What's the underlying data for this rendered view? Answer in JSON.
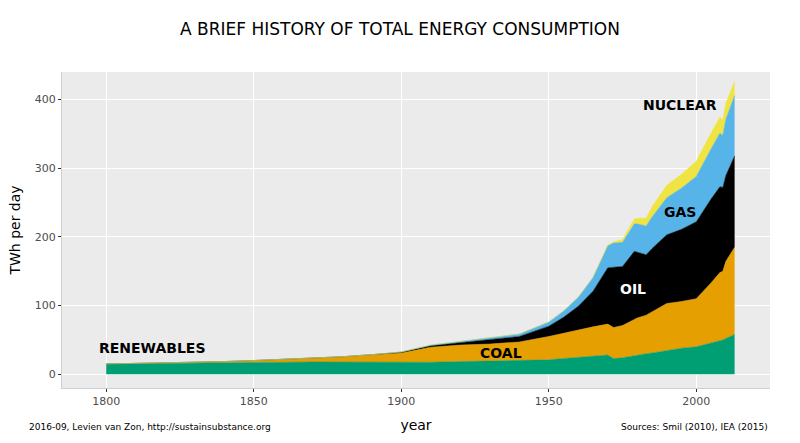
{
  "chart_data": {
    "type": "area",
    "stacked": true,
    "title": "A BRIEF HISTORY OF TOTAL ENERGY CONSUMPTION",
    "x_label": "year",
    "y_label": "TWh per day",
    "caption": "2016-09, Levien van Zon, http://sustainsubstance.org",
    "source": "Sources: Smil (2010), IEA (2015)",
    "grid": true,
    "xlim": [
      1785,
      2025
    ],
    "xticks": [
      1800,
      1850,
      1900,
      1950,
      2000
    ],
    "ylim": [
      -20,
      440
    ],
    "yticks": [
      0,
      100,
      200,
      300,
      400
    ],
    "x": [
      1800,
      1820,
      1840,
      1850,
      1860,
      1870,
      1880,
      1890,
      1900,
      1910,
      1920,
      1930,
      1940,
      1950,
      1955,
      1960,
      1965,
      1970,
      1972,
      1975,
      1979,
      1980,
      1983,
      1985,
      1990,
      1995,
      2000,
      2005,
      2008,
      2009,
      2010,
      2013
    ],
    "series": [
      {
        "name": "RENEWABLES",
        "color": "#009E73",
        "values": [
          15,
          15.5,
          16.5,
          17,
          17.5,
          18,
          18,
          18,
          17,
          17.5,
          18.5,
          19,
          20,
          21,
          23,
          25,
          27,
          28,
          23,
          24,
          27,
          28,
          30,
          31,
          35,
          38,
          40,
          45,
          48,
          50,
          52,
          58
        ]
      },
      {
        "name": "COAL",
        "color": "#E69F00",
        "values": [
          0,
          1,
          2,
          3,
          4,
          5.5,
          7.5,
          10.5,
          14,
          22,
          24,
          25,
          27,
          34,
          37,
          40,
          42,
          45,
          45,
          47,
          52,
          54,
          56,
          60,
          68,
          68,
          70,
          88,
          100,
          100,
          112,
          127
        ]
      },
      {
        "name": "OIL",
        "color": "#000000",
        "values": [
          0,
          0,
          0,
          0,
          0,
          0,
          0,
          0,
          1,
          2,
          3.5,
          6,
          8,
          15,
          23,
          34,
          52,
          82,
          88,
          86,
          100,
          96,
          88,
          92,
          100,
          105,
          112,
          122,
          125,
          122,
          125,
          133
        ]
      },
      {
        "name": "GAS",
        "color": "#56B4E9",
        "values": [
          0,
          0,
          0,
          0,
          0,
          0,
          0,
          0,
          0.5,
          1,
          1.5,
          2.5,
          3.5,
          6,
          9,
          13,
          20,
          32,
          35,
          35,
          40,
          41,
          42,
          46,
          54,
          60,
          66,
          73,
          78,
          76,
          82,
          88
        ]
      },
      {
        "name": "NUCLEAR",
        "color": "#F0E442",
        "values": [
          0,
          0,
          0,
          0,
          0,
          0,
          0,
          0,
          0,
          0,
          0,
          0,
          0,
          0,
          0,
          0,
          0,
          1,
          2,
          4,
          7,
          8,
          11,
          15,
          18,
          20,
          22,
          23,
          23,
          22,
          23,
          20
        ]
      }
    ]
  }
}
